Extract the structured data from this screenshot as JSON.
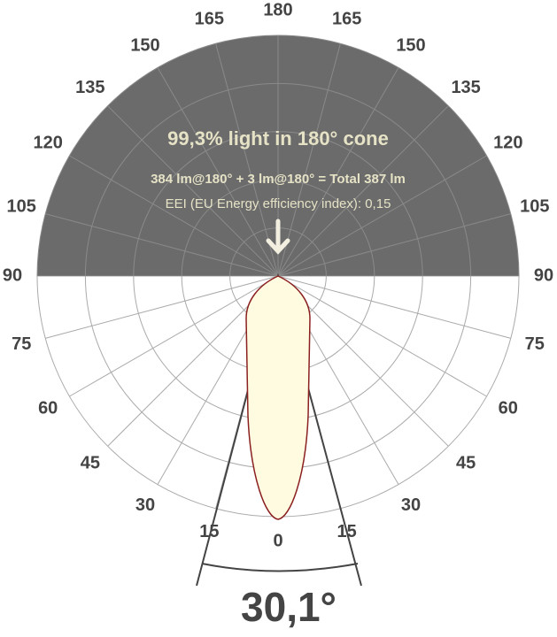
{
  "headline": "99,3% light in 180° cone",
  "flux_line": "384 lm@180° + 3 lm@180° = Total 387 lm",
  "eei_line": "EEI (EU Energy efficiency index): 0,15",
  "beam_angle": "30,1°",
  "angle_labels": [
    "0",
    "15",
    "30",
    "45",
    "60",
    "75",
    "90",
    "105",
    "120",
    "135",
    "150",
    "165",
    "180"
  ]
}
